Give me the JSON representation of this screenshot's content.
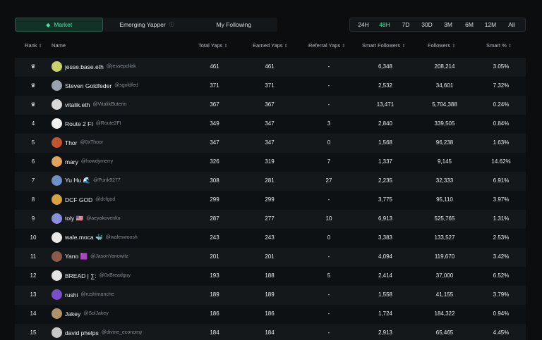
{
  "tabs": [
    {
      "label": "Market",
      "active": true,
      "icon": "market-icon"
    },
    {
      "label": "Emerging Yapper",
      "active": false,
      "info": "ⓘ"
    },
    {
      "label": "My Following",
      "active": false
    }
  ],
  "time_filters": [
    {
      "label": "24H",
      "active": false
    },
    {
      "label": "48H",
      "active": true
    },
    {
      "label": "7D",
      "active": false
    },
    {
      "label": "30D",
      "active": false
    },
    {
      "label": "3M",
      "active": false
    },
    {
      "label": "6M",
      "active": false
    },
    {
      "label": "12M",
      "active": false
    },
    {
      "label": "All",
      "active": false
    }
  ],
  "columns": {
    "rank": "Rank",
    "name": "Name",
    "total_yaps": "Total Yaps",
    "earned_yaps": "Earned Yaps",
    "referral_yaps": "Referral Yaps",
    "smart_followers": "Smart Followers",
    "followers": "Followers",
    "smart_pct": "Smart %"
  },
  "rows": [
    {
      "rank": "",
      "crown": true,
      "name": "jesse.base.eth",
      "handle": "@jessepollak",
      "total": "461",
      "earned": "461",
      "referral": "-",
      "smart": "6,348",
      "followers": "208,214",
      "pct": "3.05%",
      "avatar_color": "#c9d36a"
    },
    {
      "rank": "",
      "crown": true,
      "name": "Steven Goldfeder",
      "handle": "@sgoldfed",
      "total": "371",
      "earned": "371",
      "referral": "-",
      "smart": "2,532",
      "followers": "34,601",
      "pct": "7.32%",
      "avatar_color": "#9aa3ab"
    },
    {
      "rank": "",
      "crown": true,
      "name": "vitalik.eth",
      "handle": "@VitalikButerin",
      "total": "367",
      "earned": "367",
      "referral": "-",
      "smart": "13,471",
      "followers": "5,704,388",
      "pct": "0.24%",
      "avatar_color": "#d8d8d8"
    },
    {
      "rank": "4",
      "crown": false,
      "name": "Route 2 FI",
      "handle": "@Route2FI",
      "total": "349",
      "earned": "347",
      "referral": "3",
      "smart": "2,840",
      "followers": "339,505",
      "pct": "0.84%",
      "avatar_color": "#f2f2f2"
    },
    {
      "rank": "5",
      "crown": false,
      "name": "Thor",
      "handle": "@0xThoor",
      "total": "347",
      "earned": "347",
      "referral": "0",
      "smart": "1,568",
      "followers": "96,238",
      "pct": "1.63%",
      "avatar_color": "#c0552f"
    },
    {
      "rank": "6",
      "crown": false,
      "name": "mary",
      "handle": "@howdymerry",
      "total": "326",
      "earned": "319",
      "referral": "7",
      "smart": "1,337",
      "followers": "9,145",
      "pct": "14.62%",
      "avatar_color": "#e0a35a"
    },
    {
      "rank": "7",
      "crown": false,
      "name": "Yu Hu 🌊",
      "handle": "@Punk9277",
      "total": "308",
      "earned": "281",
      "referral": "27",
      "smart": "2,235",
      "followers": "32,333",
      "pct": "6.91%",
      "avatar_color": "#6f8fc7"
    },
    {
      "rank": "8",
      "crown": false,
      "name": "DCF GOD",
      "handle": "@dcfgod",
      "total": "299",
      "earned": "299",
      "referral": "-",
      "smart": "3,775",
      "followers": "95,110",
      "pct": "3.97%",
      "avatar_color": "#d9a13b"
    },
    {
      "rank": "9",
      "crown": false,
      "name": "toly 🇺🇸",
      "handle": "@aeyakovenko",
      "total": "287",
      "earned": "277",
      "referral": "10",
      "smart": "6,913",
      "followers": "525,765",
      "pct": "1.31%",
      "avatar_color": "#8b8fd9"
    },
    {
      "rank": "10",
      "crown": false,
      "name": "wale.moca 🐳",
      "handle": "@waleswoosh",
      "total": "243",
      "earned": "243",
      "referral": "0",
      "smart": "3,383",
      "followers": "133,527",
      "pct": "2.53%",
      "avatar_color": "#e9e9e9"
    },
    {
      "rank": "11",
      "crown": false,
      "name": "Yano 🟪",
      "handle": "@JasonYanowitz",
      "total": "201",
      "earned": "201",
      "referral": "-",
      "smart": "4,094",
      "followers": "119,670",
      "pct": "3.42%",
      "avatar_color": "#8a5a4a"
    },
    {
      "rank": "12",
      "crown": false,
      "name": "BREAD | ∑:",
      "handle": "@0xBreadguy",
      "total": "193",
      "earned": "188",
      "referral": "5",
      "smart": "2,414",
      "followers": "37,000",
      "pct": "6.52%",
      "avatar_color": "#e2e2e2"
    },
    {
      "rank": "13",
      "crown": false,
      "name": "rushi",
      "handle": "@rushimanche",
      "total": "189",
      "earned": "189",
      "referral": "-",
      "smart": "1,558",
      "followers": "41,155",
      "pct": "3.79%",
      "avatar_color": "#7b4fc9"
    },
    {
      "rank": "14",
      "crown": false,
      "name": "Jakey",
      "handle": "@SolJakey",
      "total": "186",
      "earned": "186",
      "referral": "-",
      "smart": "1,724",
      "followers": "184,322",
      "pct": "0.94%",
      "avatar_color": "#b0926a"
    },
    {
      "rank": "15",
      "crown": false,
      "name": "david phelps",
      "handle": "@divine_economy",
      "total": "184",
      "earned": "184",
      "referral": "-",
      "smart": "2,913",
      "followers": "65,465",
      "pct": "4.45%",
      "avatar_color": "#c8c8c8"
    }
  ],
  "colors": {
    "accent": "#3ee6a3",
    "crown": "#e7c98b"
  }
}
